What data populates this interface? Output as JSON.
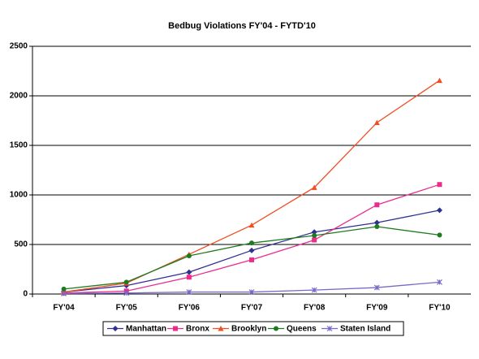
{
  "chart_data": {
    "type": "line",
    "title": "Bedbug Violations FY'04 - FYTD'10",
    "categories": [
      "FY'04",
      "FY'05",
      "FY'06",
      "FY'07",
      "FY'08",
      "FY'09",
      "FY'10"
    ],
    "series": [
      {
        "name": "Manhattan",
        "color": "#2e3192",
        "marker": "diamond",
        "values": [
          20,
          85,
          220,
          440,
          625,
          720,
          845
        ]
      },
      {
        "name": "Bronx",
        "color": "#ec2c8c",
        "marker": "square",
        "values": [
          10,
          30,
          170,
          345,
          545,
          900,
          1105
        ]
      },
      {
        "name": "Brooklyn",
        "color": "#f04e23",
        "marker": "triangle",
        "values": [
          20,
          110,
          400,
          695,
          1075,
          1730,
          2155
        ]
      },
      {
        "name": "Queens",
        "color": "#1e7b1e",
        "marker": "circle",
        "values": [
          50,
          120,
          385,
          515,
          590,
          680,
          595
        ]
      },
      {
        "name": "Staten Island",
        "color": "#7b68c8",
        "marker": "x",
        "values": [
          5,
          10,
          20,
          20,
          40,
          65,
          120
        ]
      }
    ],
    "ylim": [
      0,
      2500
    ],
    "yticks": [
      0,
      500,
      1000,
      1500,
      2000,
      2500
    ],
    "grid": true,
    "legend": "bottom"
  }
}
